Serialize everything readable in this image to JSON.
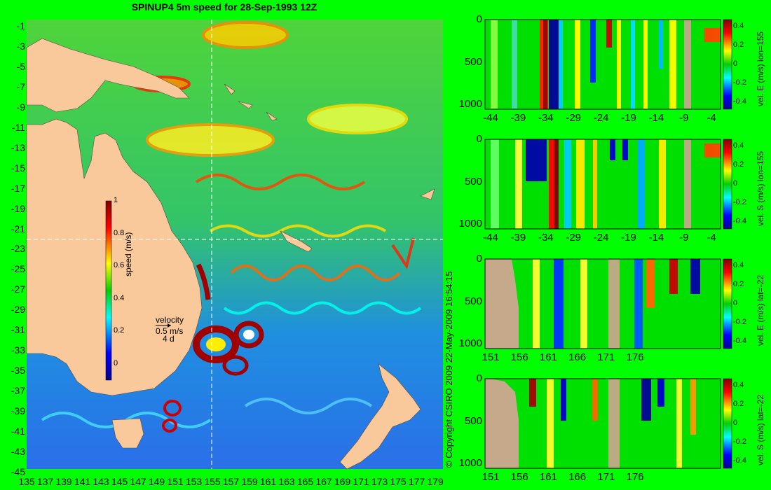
{
  "title": "SPINUP4 5m speed for 28-Sep-1993 12Z",
  "copyright": "© Copyright CSIRO 2009   22-May-2009 16:54:15",
  "colors": {
    "background": "#00ff00",
    "land": "#f9c99b",
    "section_land": "#c6a98b",
    "guideline": "#ffffff"
  },
  "map": {
    "lat_ticks": [
      "-1",
      "-3",
      "-5",
      "-7",
      "-9",
      "-11",
      "-13",
      "-15",
      "-17",
      "-19",
      "-21",
      "-23",
      "-25",
      "-27",
      "-29",
      "-31",
      "-33",
      "-35",
      "-37",
      "-39",
      "-41",
      "-43",
      "-45"
    ],
    "lon_ticks": [
      "135",
      "137",
      "139",
      "141",
      "143",
      "145",
      "147",
      "149",
      "151",
      "153",
      "155",
      "157",
      "159",
      "161",
      "163",
      "165",
      "167",
      "169",
      "171",
      "173",
      "175",
      "177",
      "179"
    ],
    "colorbar": {
      "label": "speed (m/s)",
      "ticks": [
        "1",
        "0.8",
        "0.6",
        "0.4",
        "0.2",
        "0"
      ],
      "range": [
        -0.1,
        1
      ]
    },
    "velocity_key": {
      "title": "velocity",
      "speed": "0.5 m/s",
      "duration": "4 d"
    },
    "crosshair": {
      "lon": 155,
      "lat": -22
    }
  },
  "sections": [
    {
      "colorbar_label": "vel. E (m/s) lon=155",
      "y_ticks": [
        "0",
        "500",
        "1000"
      ],
      "x_ticks": [
        "-44",
        "-39",
        "-34",
        "-29",
        "-24",
        "-19",
        "-14",
        "-9",
        "-4"
      ],
      "cb_ticks": [
        "0.4",
        "0.2",
        "0",
        "-0.2",
        "-0.4"
      ]
    },
    {
      "colorbar_label": "vel. S (m/s) lon=155",
      "y_ticks": [
        "0",
        "500",
        "1000"
      ],
      "x_ticks": [
        "-44",
        "-39",
        "-34",
        "-29",
        "-24",
        "-19",
        "-14",
        "-9",
        "-4"
      ],
      "cb_ticks": [
        "0.4",
        "0.2",
        "0",
        "-0.2",
        "-0.4"
      ]
    },
    {
      "colorbar_label": "vel. E (m/s) lat=-22",
      "y_ticks": [
        "0",
        "500",
        "1000"
      ],
      "x_ticks": [
        "151",
        "156",
        "161",
        "166",
        "171",
        "176"
      ],
      "cb_ticks": [
        "0.4",
        "0.2",
        "0",
        "-0.2",
        "-0.4"
      ]
    },
    {
      "colorbar_label": "vel. S (m/s) lat=-22",
      "y_ticks": [
        "0",
        "500",
        "1000"
      ],
      "x_ticks": [
        "151",
        "156",
        "161",
        "166",
        "171",
        "176"
      ],
      "cb_ticks": [
        "0.4",
        "0.2",
        "0",
        "-0.2",
        "-0.4"
      ]
    }
  ]
}
